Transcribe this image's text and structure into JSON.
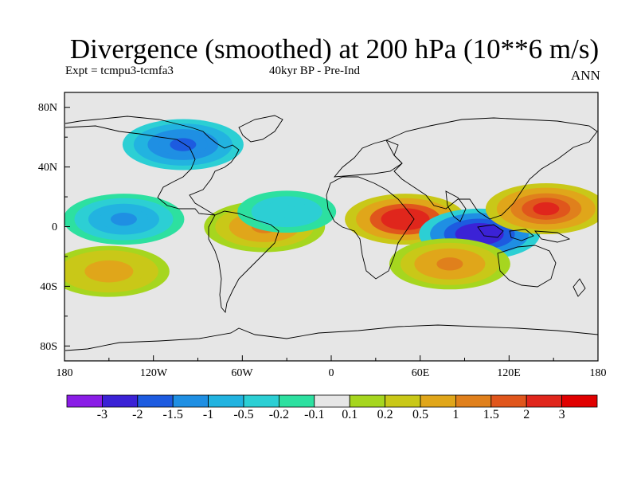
{
  "title": "Divergence (smoothed) at 200 hPa (10**6 m/s)",
  "subtitle_left": "Expt = tcmpu3-tcmfa3",
  "subtitle_center": "40kyr BP - Pre-Ind",
  "subtitle_right": "ANN",
  "lat_labels": [
    "80N",
    "40N",
    "0",
    "40S",
    "80S"
  ],
  "lon_labels": [
    "180",
    "120W",
    "60W",
    "0",
    "60E",
    "120E",
    "180"
  ],
  "colorbar": {
    "labels": [
      "-3",
      "-2",
      "-1.5",
      "-1",
      "-0.5",
      "-0.2",
      "-0.1",
      "0.1",
      "0.2",
      "0.5",
      "1",
      "1.5",
      "2",
      "3"
    ],
    "colors": [
      "#8a1de6",
      "#3b22d6",
      "#1d5be0",
      "#1f8fe3",
      "#22b3e0",
      "#2ccfd4",
      "#2de0a0",
      "#e6e6e6",
      "#a6d61f",
      "#c9c818",
      "#e0a61a",
      "#e0801c",
      "#e0561c",
      "#e0261c",
      "#e00000"
    ]
  },
  "chart_data": {
    "type": "heatmap",
    "title": "Divergence (smoothed) at 200 hPa (10**6 m/s)",
    "projection": "cylindrical equidistant, 180W-180E, 90S-90N",
    "levels": [
      -3,
      -2,
      -1.5,
      -1,
      -0.5,
      -0.2,
      -0.1,
      0.1,
      0.2,
      0.5,
      1,
      1.5,
      2,
      3
    ],
    "features": [
      {
        "name": "central Africa / western Indian Ocean",
        "lon": 50,
        "lat": 5,
        "value": 2.5
      },
      {
        "name": "Maritime Continent",
        "lon": 100,
        "lat": -5,
        "value": -3
      },
      {
        "name": "western Pacific",
        "lon": 145,
        "lat": 12,
        "value": 2.2
      },
      {
        "name": "tropical Pacific",
        "lon": -140,
        "lat": 5,
        "value": -1.2
      },
      {
        "name": "northern Canada",
        "lon": -100,
        "lat": 55,
        "value": -1.8
      },
      {
        "name": "South Atlantic",
        "lon": -45,
        "lat": 0,
        "value": 1.2
      },
      {
        "name": "Atlantic",
        "lon": -30,
        "lat": 10,
        "value": -0.5
      },
      {
        "name": "Indian Ocean subtropics",
        "lon": 80,
        "lat": -25,
        "value": 1.0
      },
      {
        "name": "southern Pacific",
        "lon": -150,
        "lat": -30,
        "value": 0.8
      }
    ]
  }
}
